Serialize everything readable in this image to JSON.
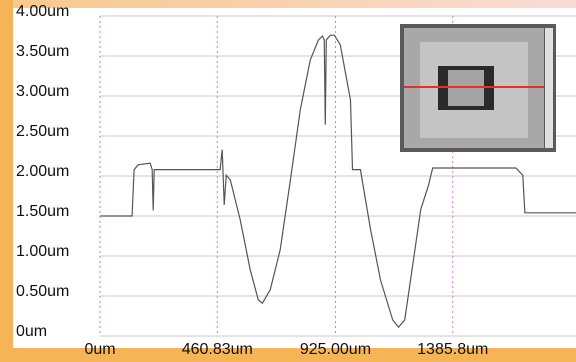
{
  "chart_data": {
    "type": "line",
    "x": [
      0,
      126,
      134,
      150,
      197,
      205,
      209,
      213,
      472,
      480,
      488,
      496,
      512,
      551,
      590,
      622,
      638,
      669,
      708,
      748,
      787,
      826,
      858,
      874,
      881,
      885,
      889,
      905,
      921,
      944,
      984,
      992,
      1023,
      1063,
      1102,
      1150,
      1173,
      1197,
      1220,
      1260,
      1291,
      1307,
      1339,
      1634,
      1661,
      1669,
      1870
    ],
    "series": [
      {
        "color": "#555555",
        "values": [
          1.5,
          1.5,
          2.08,
          2.14,
          2.16,
          2.08,
          1.57,
          2.08,
          2.08,
          2.33,
          1.64,
          2.01,
          1.95,
          1.45,
          0.83,
          0.45,
          0.41,
          0.58,
          1.08,
          1.95,
          2.83,
          3.45,
          3.7,
          3.75,
          3.7,
          2.64,
          3.7,
          3.76,
          3.76,
          3.64,
          2.95,
          2.08,
          2.08,
          1.33,
          0.7,
          0.2,
          0.11,
          0.2,
          0.7,
          1.58,
          1.89,
          2.1,
          2.1,
          2.1,
          2.01,
          1.54,
          1.54
        ]
      }
    ],
    "xlim": [
      0,
      1870
    ],
    "ylim": [
      0,
      4
    ],
    "xticks": [
      {
        "value": 0,
        "label": "0um"
      },
      {
        "value": 460.83,
        "label": "460.83um"
      },
      {
        "value": 925,
        "label": "925.00um"
      },
      {
        "value": 1385.8,
        "label": "1385.8um"
      }
    ],
    "yticks": [
      {
        "value": 0,
        "label": "0um"
      },
      {
        "value": 0.5,
        "label": "0.50um"
      },
      {
        "value": 1,
        "label": "1.00um"
      },
      {
        "value": 1.5,
        "label": "1.50um"
      },
      {
        "value": 2,
        "label": "2.00um"
      },
      {
        "value": 2.5,
        "label": "2.50um"
      },
      {
        "value": 3,
        "label": "3.00um"
      },
      {
        "value": 3.5,
        "label": "3.50um"
      },
      {
        "value": 4,
        "label": "4.00um"
      }
    ],
    "grid": true
  }
}
